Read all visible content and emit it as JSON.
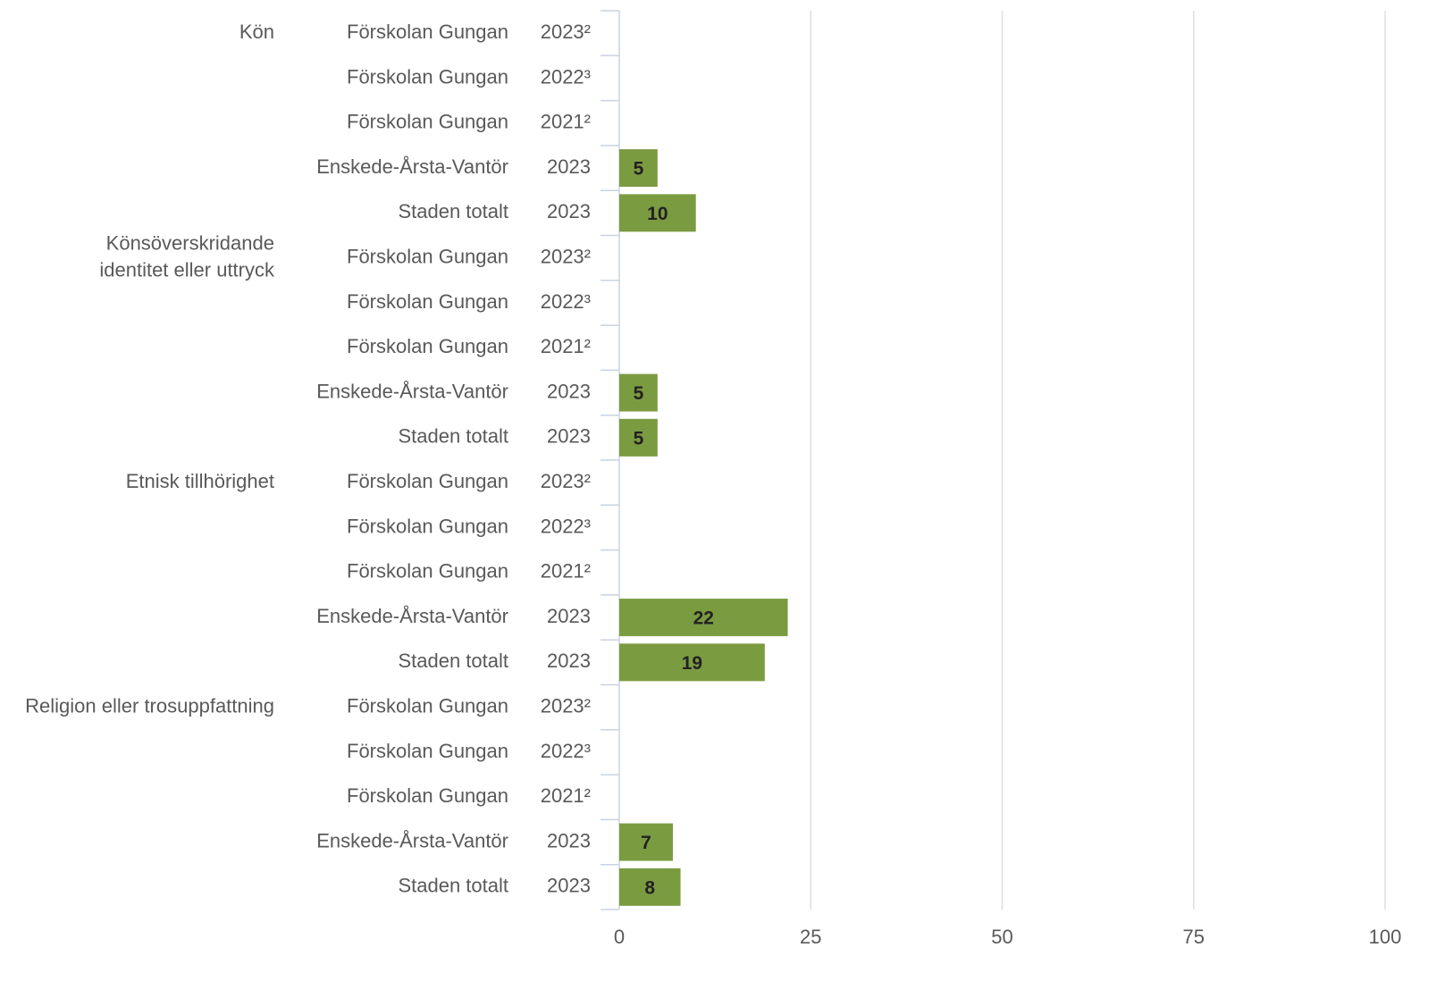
{
  "chart_data": {
    "type": "bar",
    "orientation": "horizontal",
    "color": "#7b9b41",
    "xlim": [
      0,
      100
    ],
    "xticks": [
      0,
      25,
      50,
      75,
      100
    ],
    "grid": true,
    "groups": [
      {
        "name": "Kön",
        "rows": [
          {
            "unit": "Förskolan Gungan",
            "year": "2023²",
            "value": null
          },
          {
            "unit": "Förskolan Gungan",
            "year": "2022³",
            "value": null
          },
          {
            "unit": "Förskolan Gungan",
            "year": "2021²",
            "value": null
          },
          {
            "unit": "Enskede-Årsta-Vantör",
            "year": "2023",
            "value": 5
          },
          {
            "unit": "Staden totalt",
            "year": "2023",
            "value": 10
          }
        ]
      },
      {
        "name": "Könsöverskridande\nidentitet eller uttryck",
        "rows": [
          {
            "unit": "Förskolan Gungan",
            "year": "2023²",
            "value": null
          },
          {
            "unit": "Förskolan Gungan",
            "year": "2022³",
            "value": null
          },
          {
            "unit": "Förskolan Gungan",
            "year": "2021²",
            "value": null
          },
          {
            "unit": "Enskede-Årsta-Vantör",
            "year": "2023",
            "value": 5
          },
          {
            "unit": "Staden totalt",
            "year": "2023",
            "value": 5
          }
        ]
      },
      {
        "name": "Etnisk tillhörighet",
        "rows": [
          {
            "unit": "Förskolan Gungan",
            "year": "2023²",
            "value": null
          },
          {
            "unit": "Förskolan Gungan",
            "year": "2022³",
            "value": null
          },
          {
            "unit": "Förskolan Gungan",
            "year": "2021²",
            "value": null
          },
          {
            "unit": "Enskede-Årsta-Vantör",
            "year": "2023",
            "value": 22
          },
          {
            "unit": "Staden totalt",
            "year": "2023",
            "value": 19
          }
        ]
      },
      {
        "name": "Religion eller trosuppfattning",
        "rows": [
          {
            "unit": "Förskolan Gungan",
            "year": "2023²",
            "value": null
          },
          {
            "unit": "Förskolan Gungan",
            "year": "2022³",
            "value": null
          },
          {
            "unit": "Förskolan Gungan",
            "year": "2021²",
            "value": null
          },
          {
            "unit": "Enskede-Årsta-Vantör",
            "year": "2023",
            "value": 7
          },
          {
            "unit": "Staden totalt",
            "year": "2023",
            "value": 8
          }
        ]
      }
    ]
  }
}
